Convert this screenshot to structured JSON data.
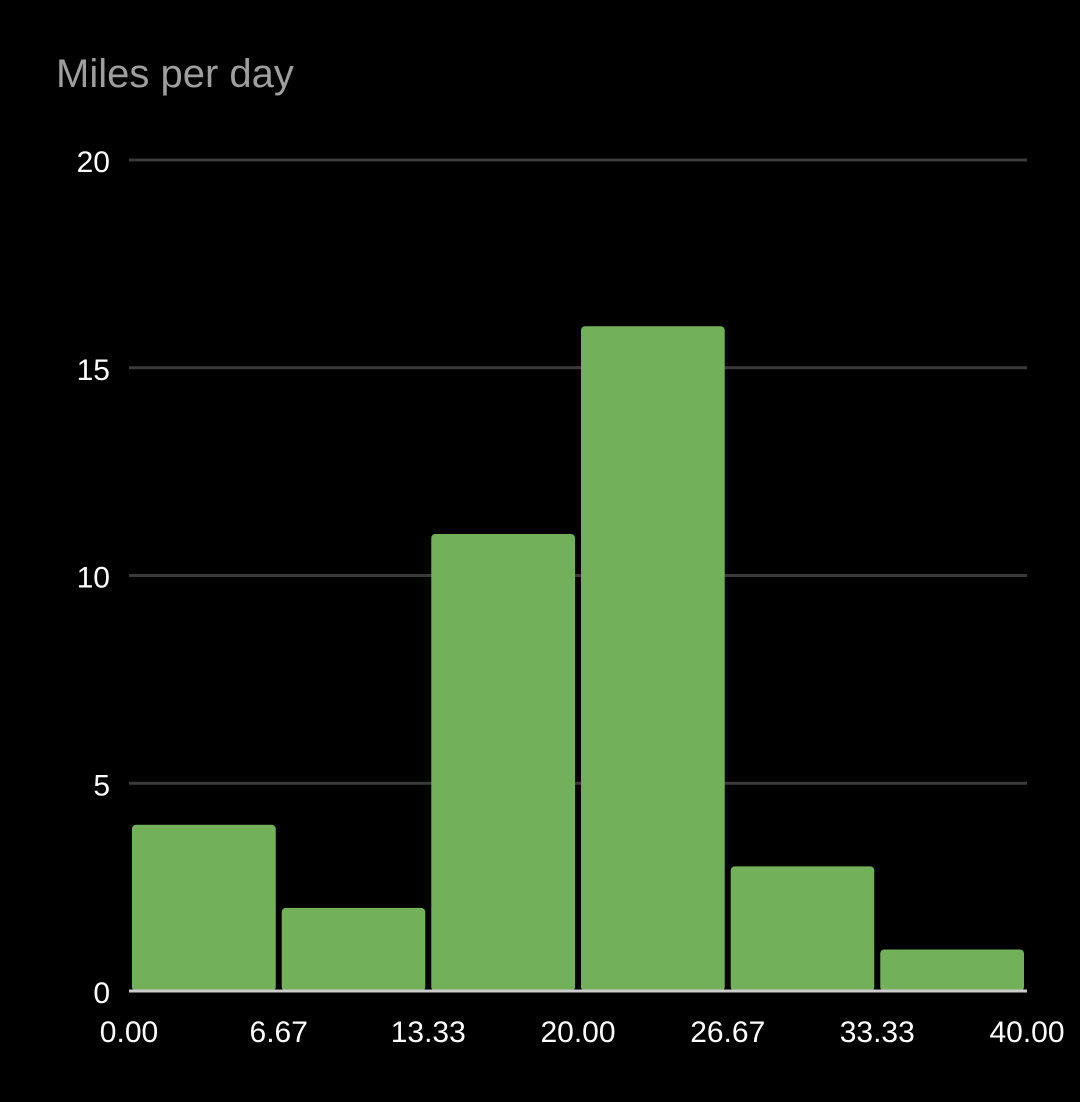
{
  "chart_data": {
    "type": "bar",
    "title": "Miles per day",
    "xlabel": "",
    "ylabel": "",
    "bin_edges": [
      0,
      6.67,
      13.33,
      20,
      26.67,
      33.33,
      40
    ],
    "x_tick_labels": [
      "0.00",
      "6.67",
      "13.33",
      "20.00",
      "26.67",
      "33.33",
      "40.00"
    ],
    "values": [
      4,
      2,
      11,
      16,
      3,
      1
    ],
    "y_ticks": [
      0,
      5,
      10,
      15,
      20
    ],
    "xlim": [
      0,
      40
    ],
    "ylim": [
      0,
      20
    ],
    "grid": true,
    "legend": "none",
    "colors": {
      "bar": "#72b05a",
      "background": "#000000",
      "grid": "#3a3a3a",
      "axis": "#cccccc",
      "tick_text": "#ffffff",
      "title_text": "#9e9e9e"
    }
  }
}
